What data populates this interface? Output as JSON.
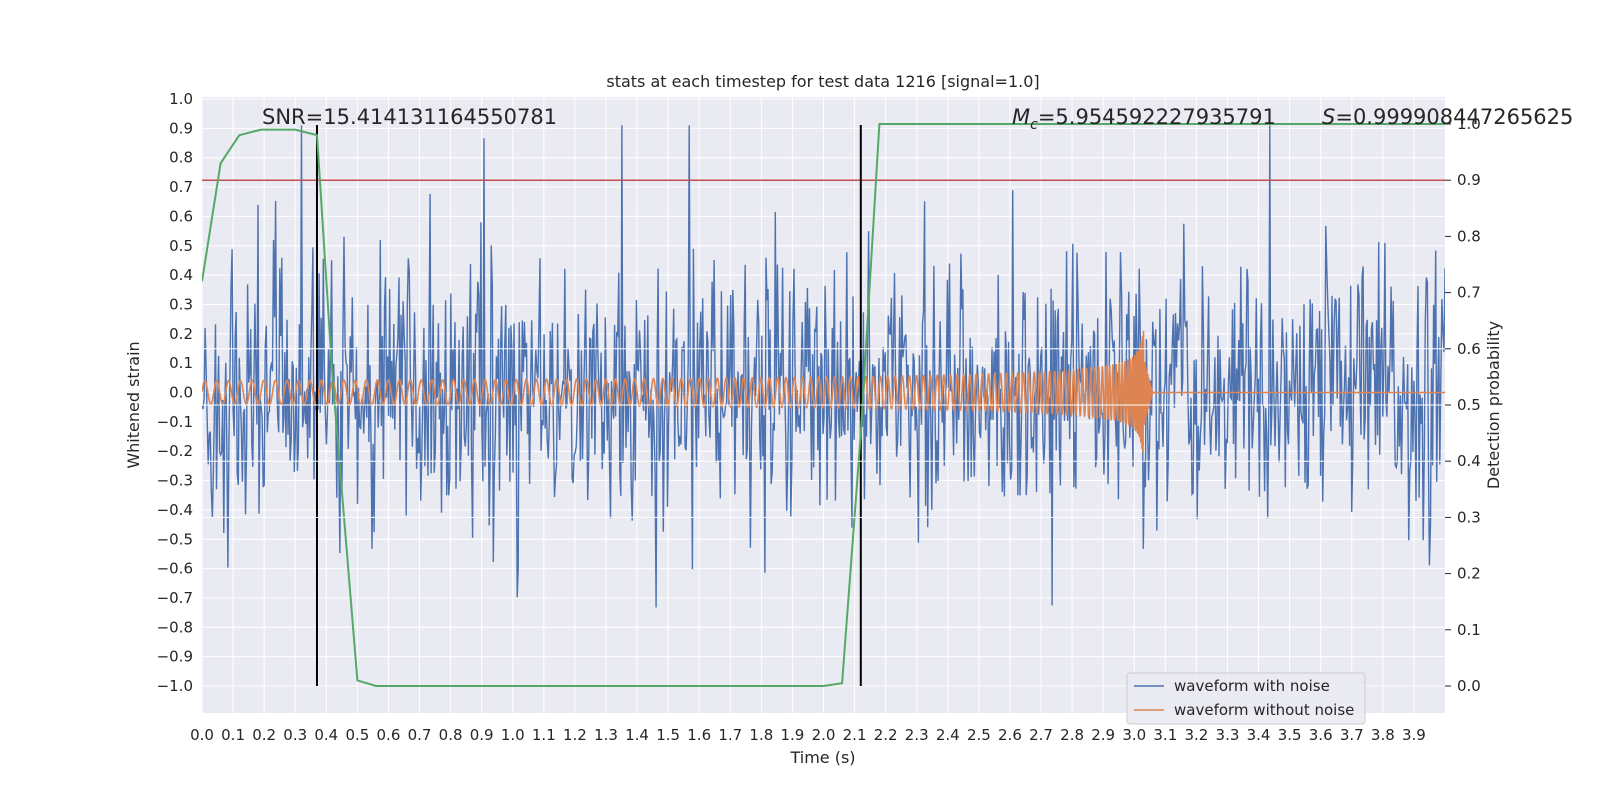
{
  "chart_data": {
    "type": "line",
    "title": "stats at each timestep for test data 1216 [signal=1.0]",
    "xlabel": "Time (s)",
    "ylabel": "Whitened strain",
    "y2label": "Detection probability",
    "xlim": [
      0.0,
      4.0
    ],
    "ylim": [
      -1.1,
      1.0
    ],
    "y2lim": [
      -0.05,
      1.0
    ],
    "x_ticks": [
      0.0,
      0.1,
      0.2,
      0.3,
      0.4,
      0.5,
      0.6,
      0.7,
      0.8,
      0.9,
      1.0,
      1.1,
      1.2,
      1.3,
      1.4,
      1.5,
      1.6,
      1.7,
      1.8,
      1.9,
      2.0,
      2.1,
      2.2,
      2.3,
      2.4,
      2.5,
      2.6,
      2.7,
      2.8,
      2.9,
      3.0,
      3.1,
      3.2,
      3.3,
      3.4,
      3.5,
      3.6,
      3.7,
      3.8,
      3.9
    ],
    "y_ticks": [
      1.0,
      0.9,
      0.8,
      0.7,
      0.6,
      0.5,
      0.4,
      0.3,
      0.2,
      0.1,
      0.0,
      -0.1,
      -0.2,
      -0.3,
      -0.4,
      -0.5,
      -0.6,
      -0.7,
      -0.8,
      -0.9,
      -1.0
    ],
    "y2_ticks": [
      1.0,
      0.9,
      0.8,
      0.7,
      0.6,
      0.5,
      0.4,
      0.3,
      0.2,
      0.1,
      0.0
    ],
    "grid": true,
    "legend_position": "bottom-right",
    "annotations": {
      "snr": "SNR=15.414131164550781",
      "mc_symbol": "M",
      "mc_sub": "c",
      "mc_value": "=5.954592227935791",
      "s_symbol": "S",
      "s_value": "=0.999908447265625"
    },
    "threshold": {
      "value": 0.9,
      "axis": "right",
      "color": "#c44e52"
    },
    "vertical_markers": [
      0.37,
      2.12
    ],
    "series": [
      {
        "name": "waveform with noise",
        "color": "#4c72b0",
        "axis": "left",
        "description_values": {
          "typical_amplitude": 0.3,
          "peak_max": 0.91,
          "peak_min": -1.0,
          "samples_shown": 1200
        }
      },
      {
        "name": "waveform without noise",
        "color": "#dd8452",
        "axis": "left",
        "chirp": {
          "start_time": 0.0,
          "merger_time": 3.03,
          "start_amplitude": 0.04,
          "peak_amplitude": 0.39,
          "peak_min": -0.29,
          "start_frequency_hz": 26,
          "end_frequency_hz": 300
        }
      },
      {
        "name": "detection probability",
        "color": "#55a868",
        "axis": "right",
        "x": [
          0.0,
          0.06,
          0.12,
          0.19,
          0.3,
          0.37,
          0.42,
          0.5,
          0.56,
          1.0,
          2.0,
          2.06,
          2.12,
          2.18,
          2.25,
          4.0
        ],
        "y": [
          0.72,
          0.93,
          0.98,
          0.99,
          0.99,
          0.98,
          0.55,
          0.01,
          0.0,
          0.0,
          0.0,
          0.005,
          0.45,
          1.0,
          1.0,
          1.0
        ]
      }
    ]
  }
}
